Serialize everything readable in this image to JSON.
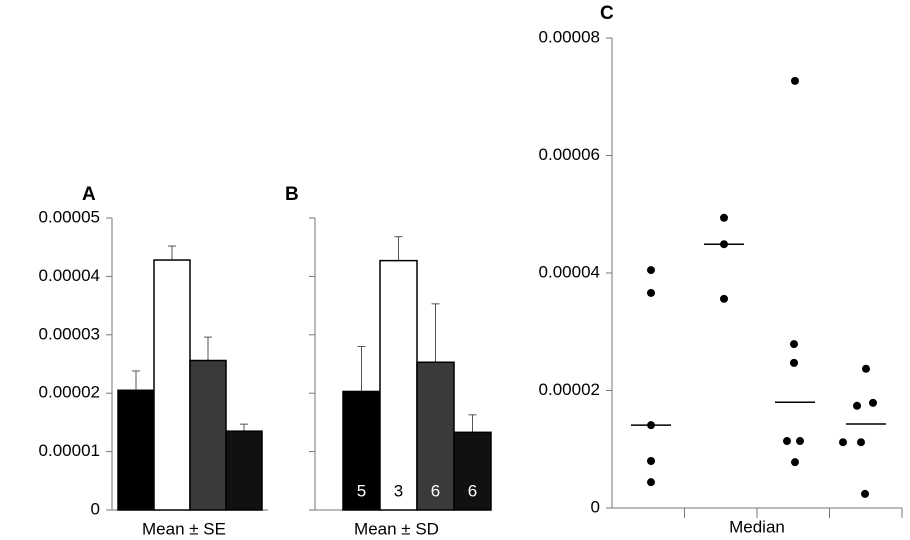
{
  "chart_data": [
    {
      "type": "bar",
      "panel": "A",
      "xlabel": "Mean ± SE",
      "values": [
        2.05e-05,
        4.28e-05,
        2.56e-05,
        1.35e-05
      ],
      "errors": [
        3.3e-06,
        2.4e-06,
        4e-06,
        1.2e-06
      ],
      "colors": [
        "#000000",
        "#ffffff",
        "#3a3a3a",
        "#111111"
      ],
      "ylim": [
        0,
        5e-05
      ],
      "yticks": [
        0,
        1e-05,
        2e-05,
        3e-05,
        4e-05,
        5e-05
      ]
    },
    {
      "type": "bar",
      "panel": "B",
      "xlabel": "Mean ± SD",
      "values": [
        2.03e-05,
        4.27e-05,
        2.53e-05,
        1.33e-05
      ],
      "errors": [
        7.7e-06,
        4.1e-06,
        1e-05,
        3e-06
      ],
      "sample_sizes": [
        5,
        3,
        6,
        6
      ],
      "colors": [
        "#000000",
        "#ffffff",
        "#3a3a3a",
        "#111111"
      ],
      "ylim": [
        0,
        5e-05
      ],
      "yticks": [
        0,
        1e-05,
        2e-05,
        3e-05,
        4e-05,
        5e-05
      ]
    },
    {
      "type": "dot",
      "panel": "C",
      "xlabel": "Median",
      "groups": [
        {
          "values": [
            4.05e-05,
            3.66e-05,
            1.41e-05,
            8e-06,
            4.4e-06
          ],
          "median": 1.41e-05
        },
        {
          "values": [
            4.94e-05,
            4.49e-05,
            3.56e-05
          ],
          "median": 4.49e-05
        },
        {
          "values": [
            7.27e-05,
            2.79e-05,
            2.47e-05,
            1.14e-05,
            1.14e-05,
            7.8e-06
          ],
          "median": 1.8e-05
        },
        {
          "values": [
            2.37e-05,
            1.74e-05,
            1.79e-05,
            1.12e-05,
            1.12e-05,
            2.4e-06
          ],
          "median": 1.43e-05
        }
      ],
      "ylim": [
        0,
        8e-05
      ],
      "yticks": [
        0,
        2e-05,
        4e-05,
        6e-05,
        8e-05
      ]
    }
  ]
}
